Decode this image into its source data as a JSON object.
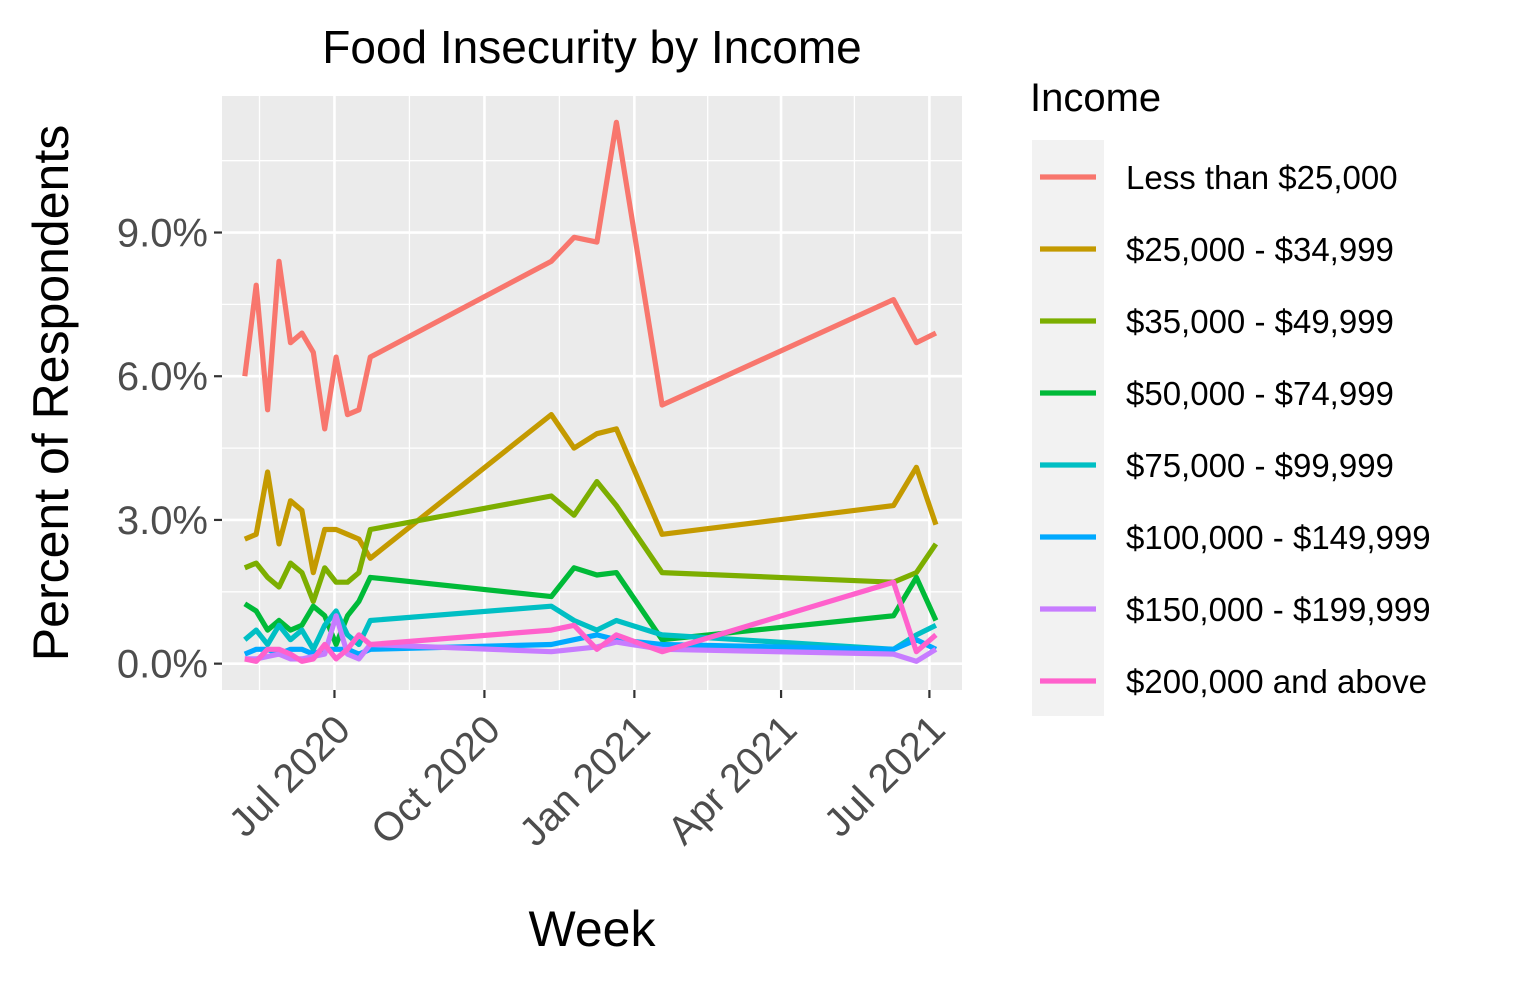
{
  "chart_data": {
    "type": "line",
    "title": "Food Insecurity by Income",
    "xlabel": "Week",
    "ylabel": "Percent of Respondents",
    "x_axis_type": "date",
    "xlim": [
      "2020-04-23",
      "2021-07-21"
    ],
    "ylim": [
      -0.55,
      11.85
    ],
    "x_ticks": [
      {
        "date": "2020-07-01",
        "label": "Jul 2020"
      },
      {
        "date": "2020-10-01",
        "label": "Oct 2020"
      },
      {
        "date": "2021-01-01",
        "label": "Jan 2021"
      },
      {
        "date": "2021-04-01",
        "label": "Apr 2021"
      },
      {
        "date": "2021-07-01",
        "label": "Jul 2021"
      }
    ],
    "y_ticks": [
      {
        "value": 0,
        "label": "0.0%"
      },
      {
        "value": 3,
        "label": "3.0%"
      },
      {
        "value": 6,
        "label": "6.0%"
      },
      {
        "value": 9,
        "label": "9.0%"
      }
    ],
    "grid": true,
    "background": "#EBEBEB",
    "legend": {
      "title": "Income",
      "position": "right"
    },
    "x": [
      "2020-05-07",
      "2020-05-14",
      "2020-05-21",
      "2020-05-28",
      "2020-06-04",
      "2020-06-11",
      "2020-06-18",
      "2020-06-25",
      "2020-07-02",
      "2020-07-09",
      "2020-07-16",
      "2020-07-23",
      "2020-11-11",
      "2020-11-25",
      "2020-12-09",
      "2020-12-21",
      "2021-01-18",
      "2021-06-09",
      "2021-06-23",
      "2021-07-05"
    ],
    "series": [
      {
        "name": "Less than $25,000",
        "color": "#F8766D",
        "values": [
          6.0,
          7.9,
          5.3,
          8.4,
          6.7,
          6.9,
          6.5,
          4.9,
          6.4,
          5.2,
          5.3,
          6.4,
          8.4,
          8.9,
          8.8,
          11.3,
          5.4,
          7.6,
          6.7,
          6.9
        ]
      },
      {
        "name": "$25,000 - $34,999",
        "color": "#C49A00",
        "values": [
          2.6,
          2.7,
          4.0,
          2.5,
          3.4,
          3.2,
          1.9,
          2.8,
          2.8,
          2.7,
          2.6,
          2.2,
          5.2,
          4.5,
          4.8,
          4.9,
          2.7,
          3.3,
          4.1,
          2.9
        ]
      },
      {
        "name": "$35,000 - $49,999",
        "color": "#7CAE00",
        "values": [
          2.0,
          2.1,
          1.8,
          1.6,
          2.1,
          1.9,
          1.3,
          2.0,
          1.7,
          1.7,
          1.9,
          2.8,
          3.5,
          3.1,
          3.8,
          3.3,
          1.9,
          1.7,
          1.9,
          2.5
        ]
      },
      {
        "name": "$50,000 - $74,999",
        "color": "#00BA38",
        "values": [
          1.25,
          1.1,
          0.7,
          0.9,
          0.7,
          0.8,
          1.2,
          1.0,
          0.4,
          1.0,
          1.3,
          1.8,
          1.4,
          2.0,
          1.85,
          1.9,
          0.5,
          1.0,
          1.8,
          0.9
        ]
      },
      {
        "name": "$75,000 - $99,999",
        "color": "#00BFC4",
        "values": [
          0.5,
          0.7,
          0.4,
          0.8,
          0.5,
          0.7,
          0.3,
          0.8,
          1.1,
          0.6,
          0.4,
          0.9,
          1.2,
          0.9,
          0.7,
          0.9,
          0.6,
          0.3,
          0.6,
          0.8
        ]
      },
      {
        "name": "$100,000 - $149,999",
        "color": "#00A9FF",
        "values": [
          0.2,
          0.3,
          0.3,
          0.2,
          0.3,
          0.3,
          0.2,
          0.3,
          0.3,
          0.3,
          0.2,
          0.3,
          0.4,
          0.5,
          0.6,
          0.5,
          0.4,
          0.3,
          0.5,
          0.3
        ]
      },
      {
        "name": "$150,000 - $199,999",
        "color": "#C77CFF",
        "values": [
          0.1,
          0.1,
          0.15,
          0.2,
          0.1,
          0.1,
          0.15,
          0.2,
          1.0,
          0.2,
          0.1,
          0.4,
          0.25,
          0.3,
          0.35,
          0.45,
          0.3,
          0.2,
          0.05,
          0.3
        ]
      },
      {
        "name": "$200,000 and above",
        "color": "#FF61CC",
        "values": [
          0.1,
          0.05,
          0.3,
          0.3,
          0.2,
          0.05,
          0.1,
          0.4,
          0.1,
          0.3,
          0.6,
          0.4,
          0.7,
          0.8,
          0.3,
          0.6,
          0.25,
          1.7,
          0.25,
          0.6
        ]
      }
    ]
  }
}
